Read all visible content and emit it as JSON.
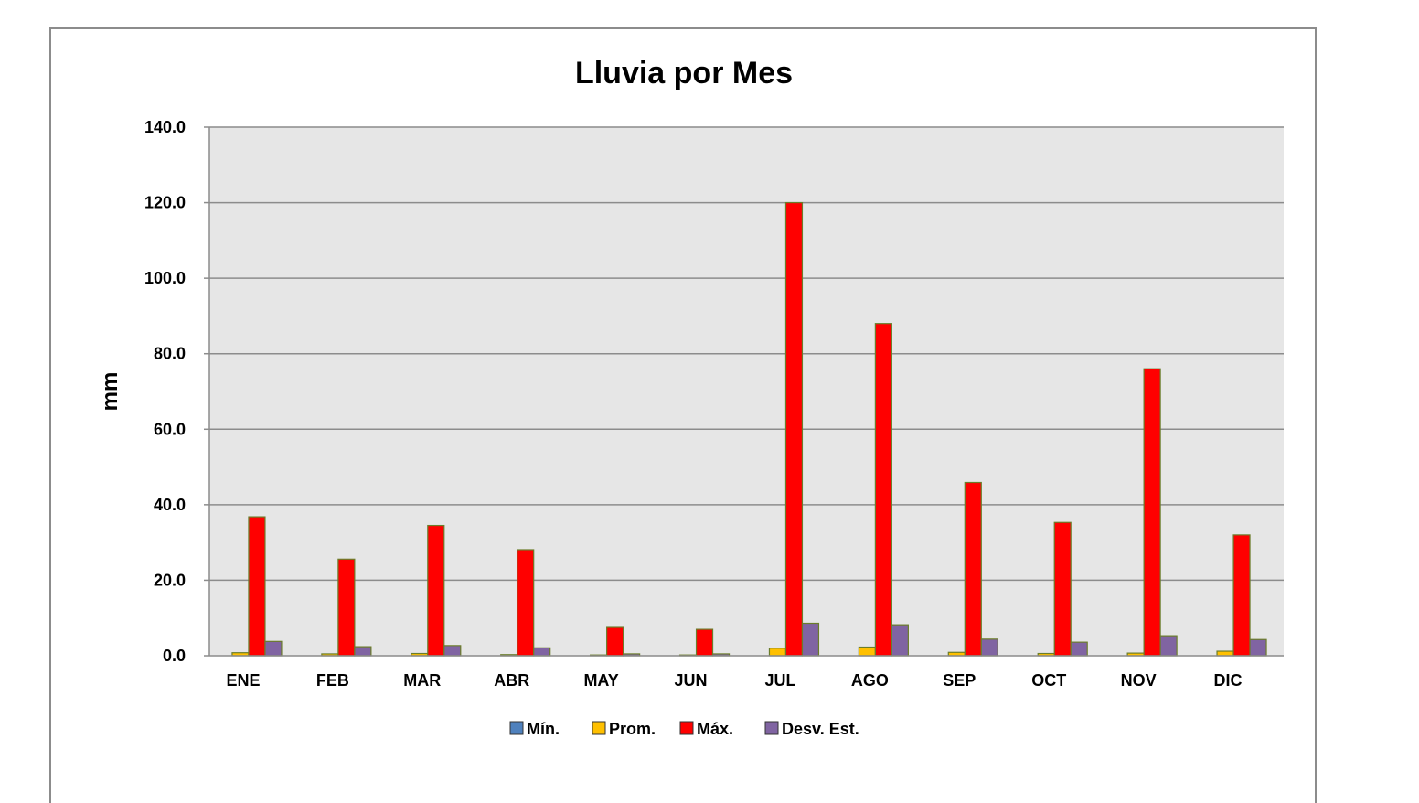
{
  "chart_data": {
    "type": "bar",
    "title": "Lluvia por Mes",
    "xlabel": "",
    "ylabel": "mm",
    "ylim": [
      0,
      140
    ],
    "yticks": [
      "0.0",
      "20.0",
      "40.0",
      "60.0",
      "80.0",
      "100.0",
      "120.0",
      "140.0"
    ],
    "ytick_values": [
      0,
      20,
      40,
      60,
      80,
      100,
      120,
      140
    ],
    "grid": true,
    "legend_position": "bottom",
    "categories": [
      "ENE",
      "FEB",
      "MAR",
      "ABR",
      "MAY",
      "JUN",
      "JUL",
      "AGO",
      "SEP",
      "OCT",
      "NOV",
      "DIC"
    ],
    "series": [
      {
        "name": "Mín.",
        "color": "#4f81bd",
        "values": [
          0,
          0,
          0,
          0,
          0,
          0,
          0,
          0,
          0,
          0,
          0,
          0
        ]
      },
      {
        "name": "Prom.",
        "color": "#ffc000",
        "values": [
          0.8,
          0.5,
          0.6,
          0.3,
          0.2,
          0.2,
          2.0,
          2.3,
          0.9,
          0.6,
          0.7,
          1.2
        ]
      },
      {
        "name": "Máx.",
        "color": "#ff0000",
        "values": [
          36.8,
          25.6,
          34.5,
          28.1,
          7.5,
          7.0,
          120.0,
          88.0,
          45.9,
          35.3,
          76.0,
          32.0
        ]
      },
      {
        "name": "Desv. Est.",
        "color": "#8064a2",
        "values": [
          3.8,
          2.4,
          2.7,
          2.1,
          0.5,
          0.5,
          8.6,
          8.2,
          4.4,
          3.6,
          5.3,
          4.3
        ]
      }
    ],
    "colors": {
      "plot_background": "#e6e6e6",
      "gridline": "#8c8c8c",
      "bar_outline": "#6b7d2a"
    }
  }
}
